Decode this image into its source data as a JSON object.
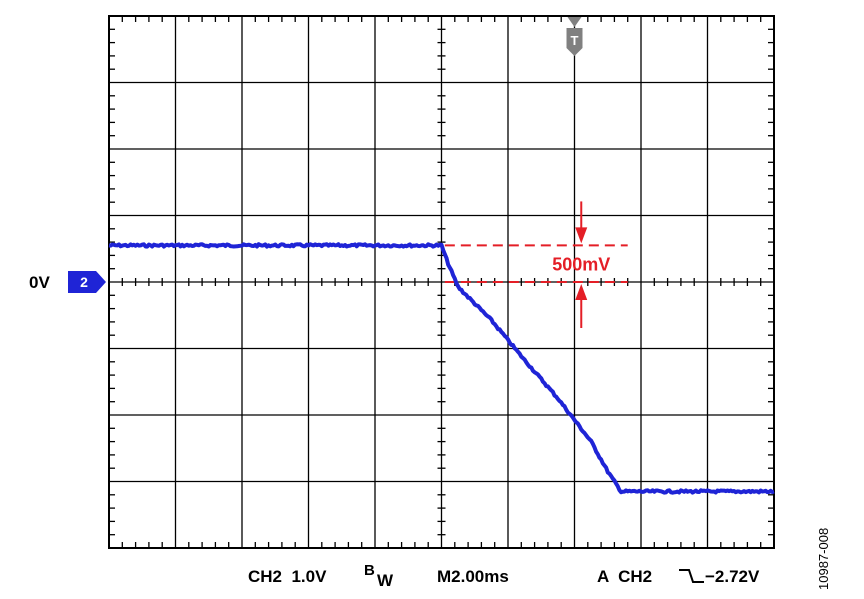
{
  "chart_data": {
    "type": "line",
    "x_unit": "ms",
    "y_unit": "V",
    "xlim": [
      -10,
      10
    ],
    "ylim": [
      -8,
      8
    ],
    "grid": true,
    "series": [
      {
        "color": "#1f24d6",
        "x": [
          -10,
          0,
          0.2,
          0.5,
          1.5,
          2.5,
          3.5,
          4.5,
          5.0,
          5.4,
          10
        ],
        "y": [
          1.1,
          1.1,
          0.55,
          -0.15,
          -1.15,
          -2.35,
          -3.5,
          -4.8,
          -5.7,
          -6.3,
          -6.3
        ]
      }
    ],
    "annotations": {
      "measurement_label": "500mV",
      "color": "#e41e26",
      "upper_level": 1.1,
      "lower_level": 0.0,
      "x_start": 0.1,
      "x_end": 5.6
    },
    "ground_marker": {
      "label": "0V",
      "channel": "2",
      "level": 0.0,
      "color": "#1f24d6"
    },
    "trigger_marker": {
      "label": "T",
      "x": 4.0,
      "color": "#808080"
    },
    "status_bar": {
      "channel_scale": "CH2  1.0V",
      "bw_main": "B",
      "bw_sub": "W",
      "timebase": "M2.00ms",
      "trigger_prefix": "A  CH2",
      "trigger_level": "−2.72V"
    },
    "figure_id": "10987-008"
  }
}
